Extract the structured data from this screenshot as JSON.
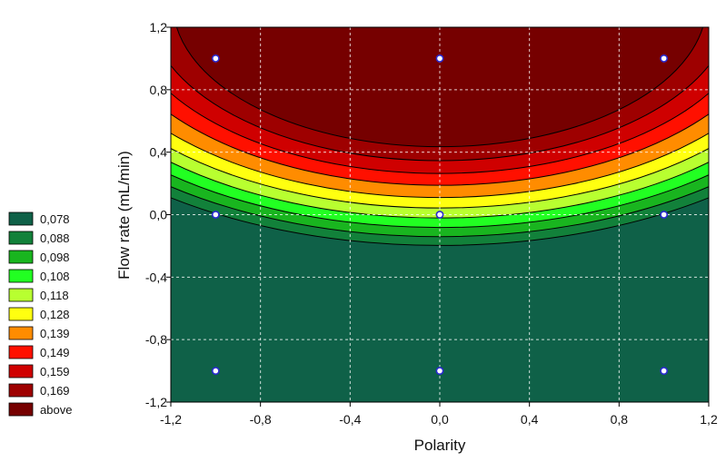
{
  "chart_data": {
    "type": "contour",
    "xlabel": "Polarity",
    "ylabel": "Flow rate (mL/min)",
    "xlim": [
      -1.2,
      1.2
    ],
    "ylim": [
      -1.2,
      1.2
    ],
    "xticks": [
      "-1,2",
      "-0,8",
      "-0,4",
      "0,0",
      "0,4",
      "0,8",
      "1,2"
    ],
    "yticks": [
      "1,2",
      "0,8",
      "0,4",
      "0,0",
      "-0,4",
      "-0,8",
      "-1,2"
    ],
    "grid": true,
    "legend_position": "left",
    "contour_levels": [
      0.078,
      0.088,
      0.098,
      0.108,
      0.118,
      0.128,
      0.139,
      0.149,
      0.159,
      0.169
    ],
    "legend": [
      {
        "label": "0,078",
        "color": "#0f6148"
      },
      {
        "label": "0,088",
        "color": "#12813a"
      },
      {
        "label": "0,098",
        "color": "#19b51f"
      },
      {
        "label": "0,108",
        "color": "#22ff22"
      },
      {
        "label": "0,118",
        "color": "#b8ff30"
      },
      {
        "label": "0,128",
        "color": "#ffff10"
      },
      {
        "label": "0,139",
        "color": "#ff8c00"
      },
      {
        "label": "0,149",
        "color": "#ff1000"
      },
      {
        "label": "0,159",
        "color": "#cf0000"
      },
      {
        "label": "0,169",
        "color": "#9e0000"
      },
      {
        "label": "above",
        "color": "#760000"
      }
    ],
    "design_points": [
      {
        "x": -1,
        "y": 1
      },
      {
        "x": 0,
        "y": 1
      },
      {
        "x": 1,
        "y": 1
      },
      {
        "x": -1,
        "y": 0
      },
      {
        "x": 0,
        "y": 0
      },
      {
        "x": 1,
        "y": 0
      },
      {
        "x": -1,
        "y": -1
      },
      {
        "x": 0,
        "y": -1
      },
      {
        "x": 1,
        "y": -1
      }
    ]
  }
}
